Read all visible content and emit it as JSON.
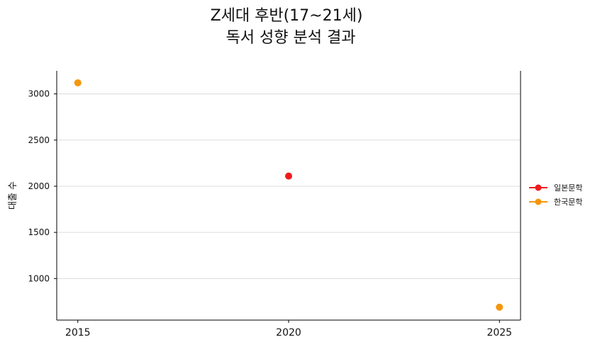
{
  "chart_data": {
    "type": "scatter",
    "title_line1": "Z세대 후반(17~21세)",
    "title_line2": "독서 성향 분석 결과",
    "xlabel": "",
    "ylabel": "대출 수",
    "x_ticks": [
      "2015",
      "2020",
      "2025"
    ],
    "y_ticks": [
      1000,
      1500,
      2000,
      2500,
      3000
    ],
    "ylim": [
      550,
      3250
    ],
    "xlim": [
      2014.5,
      2025.5
    ],
    "grid": "horizontal",
    "legend_position": "right",
    "series": [
      {
        "name": "일본문학",
        "color": "#ee1c1c",
        "points": [
          {
            "x": 2020,
            "y": 2110
          }
        ]
      },
      {
        "name": "한국문학",
        "color": "#f5960c",
        "points": [
          {
            "x": 2015,
            "y": 3120
          },
          {
            "x": 2025,
            "y": 690
          }
        ]
      }
    ]
  }
}
